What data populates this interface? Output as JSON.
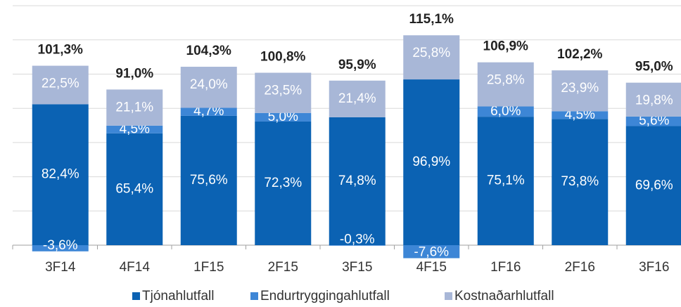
{
  "chart_data": {
    "type": "stacked_bar",
    "categories": [
      "3F14",
      "4F14",
      "1F15",
      "2F15",
      "3F15",
      "4F15",
      "1F16",
      "2F16",
      "3F16"
    ],
    "series": [
      {
        "name": "Tjónahlutfall",
        "color": "#0b62b3",
        "values": [
          82.4,
          65.4,
          75.6,
          72.3,
          74.8,
          96.9,
          75.1,
          73.8,
          69.6
        ],
        "value_labels": [
          "82,4%",
          "65,4%",
          "75,6%",
          "72,3%",
          "74,8%",
          "96,9%",
          "75,1%",
          "73,8%",
          "69,6%"
        ]
      },
      {
        "name": "Endurtryggingahlutfall",
        "color": "#3d86d6",
        "values": [
          -3.6,
          4.5,
          4.7,
          5.0,
          -0.3,
          -7.6,
          6.0,
          4.5,
          5.6
        ],
        "value_labels": [
          "-3,6%",
          "4,5%",
          "4,7%",
          "5,0%",
          "-0,3%",
          "-7,6%",
          "6,0%",
          "4,5%",
          "5,6%"
        ]
      },
      {
        "name": "Kostnaðarhlutfall",
        "color": "#a8b7d7",
        "values": [
          22.5,
          21.1,
          24.0,
          23.5,
          21.4,
          25.8,
          25.8,
          23.9,
          19.8
        ],
        "value_labels": [
          "22,5%",
          "21,1%",
          "24,0%",
          "23,5%",
          "21,4%",
          "25,8%",
          "25,8%",
          "23,9%",
          "19,8%"
        ]
      }
    ],
    "totals": [
      101.3,
      91.0,
      104.3,
      100.8,
      95.9,
      115.1,
      106.9,
      102.2,
      95.0
    ],
    "total_labels": [
      "101,3%",
      "91,0%",
      "104,3%",
      "100,8%",
      "95,9%",
      "115,1%",
      "106,9%",
      "102,2%",
      "95,0%"
    ],
    "ylim": [
      -10,
      140
    ],
    "yticks": [
      0,
      20,
      40,
      60,
      80,
      100,
      120,
      140
    ],
    "grid": true,
    "show_ytick_labels": false,
    "legend": "bottom"
  }
}
